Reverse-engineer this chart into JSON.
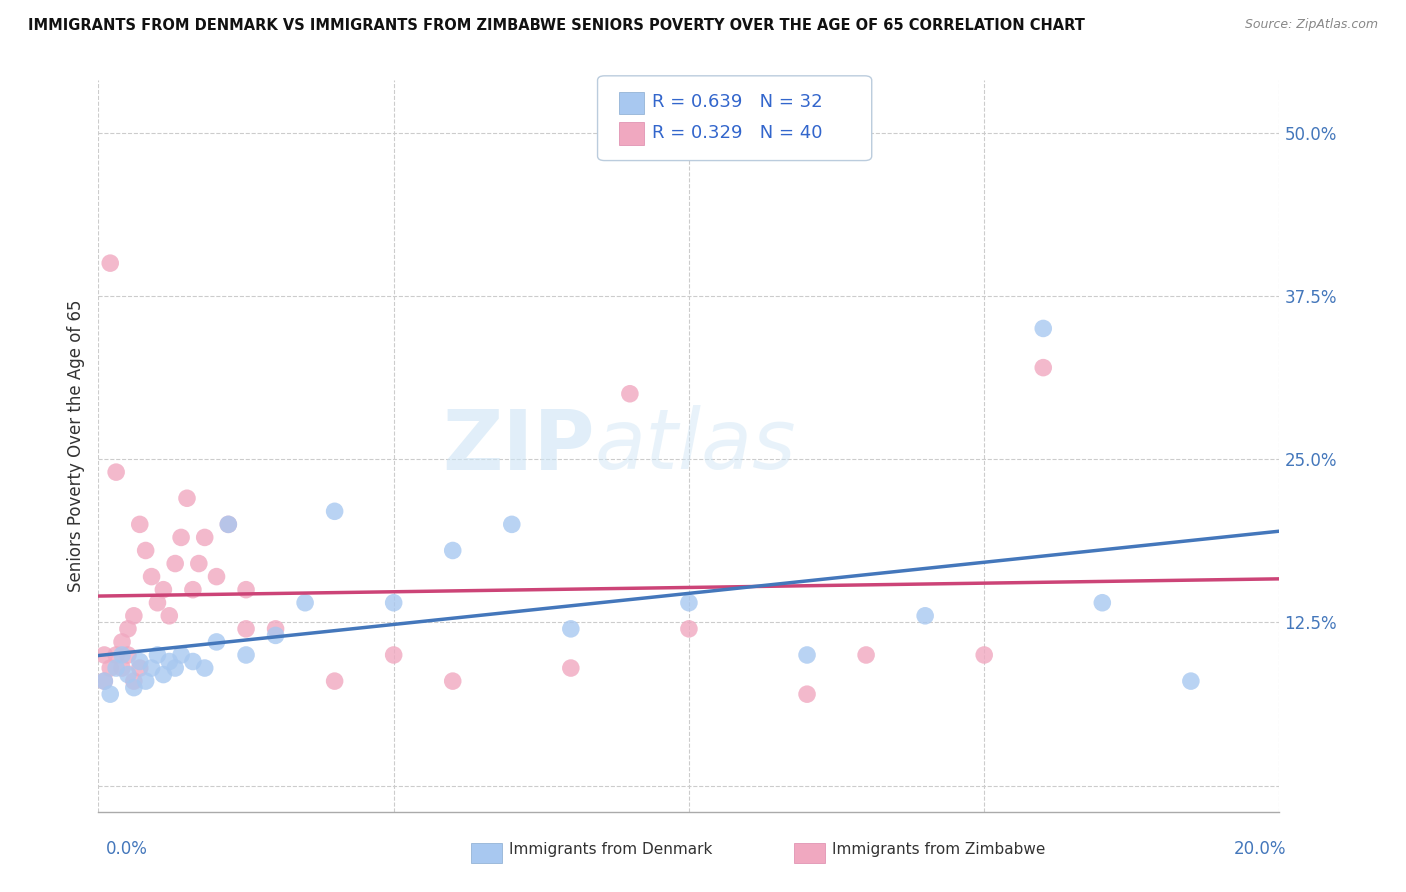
{
  "title": "IMMIGRANTS FROM DENMARK VS IMMIGRANTS FROM ZIMBABWE SENIORS POVERTY OVER THE AGE OF 65 CORRELATION CHART",
  "source": "Source: ZipAtlas.com",
  "ylabel": "Seniors Poverty Over the Age of 65",
  "ytick_values": [
    0.0,
    0.125,
    0.25,
    0.375,
    0.5
  ],
  "ytick_labels": [
    "",
    "12.5%",
    "25.0%",
    "37.5%",
    "50.0%"
  ],
  "xlim": [
    0.0,
    0.2
  ],
  "ylim": [
    -0.02,
    0.54
  ],
  "denmark_color": "#a8c8f0",
  "denmark_color_line": "#4477bb",
  "zimbabwe_color": "#f0a8c0",
  "zimbabwe_color_line": "#cc4477",
  "denmark_R": 0.639,
  "denmark_N": 32,
  "zimbabwe_R": 0.329,
  "zimbabwe_N": 40,
  "watermark_zip": "ZIP",
  "watermark_atlas": "atlas",
  "legend_denmark": "Immigrants from Denmark",
  "legend_zimbabwe": "Immigrants from Zimbabwe",
  "dk_x": [
    0.001,
    0.002,
    0.003,
    0.004,
    0.005,
    0.006,
    0.007,
    0.008,
    0.009,
    0.01,
    0.011,
    0.012,
    0.013,
    0.014,
    0.016,
    0.018,
    0.02,
    0.022,
    0.025,
    0.03,
    0.035,
    0.04,
    0.05,
    0.06,
    0.07,
    0.08,
    0.1,
    0.12,
    0.14,
    0.16,
    0.17,
    0.185
  ],
  "dk_y": [
    0.08,
    0.07,
    0.09,
    0.1,
    0.085,
    0.075,
    0.095,
    0.08,
    0.09,
    0.1,
    0.085,
    0.095,
    0.09,
    0.1,
    0.095,
    0.09,
    0.11,
    0.2,
    0.1,
    0.115,
    0.14,
    0.21,
    0.14,
    0.18,
    0.2,
    0.12,
    0.14,
    0.1,
    0.13,
    0.35,
    0.14,
    0.08
  ],
  "zim_x": [
    0.001,
    0.001,
    0.002,
    0.002,
    0.003,
    0.003,
    0.004,
    0.004,
    0.005,
    0.005,
    0.006,
    0.006,
    0.007,
    0.007,
    0.008,
    0.009,
    0.01,
    0.011,
    0.012,
    0.013,
    0.014,
    0.015,
    0.016,
    0.017,
    0.018,
    0.02,
    0.022,
    0.025,
    0.03,
    0.04,
    0.05,
    0.06,
    0.08,
    0.09,
    0.1,
    0.12,
    0.13,
    0.15,
    0.16,
    0.025
  ],
  "zim_y": [
    0.08,
    0.1,
    0.09,
    0.4,
    0.1,
    0.24,
    0.09,
    0.11,
    0.1,
    0.12,
    0.08,
    0.13,
    0.09,
    0.2,
    0.18,
    0.16,
    0.14,
    0.15,
    0.13,
    0.17,
    0.19,
    0.22,
    0.15,
    0.17,
    0.19,
    0.16,
    0.2,
    0.15,
    0.12,
    0.08,
    0.1,
    0.08,
    0.09,
    0.3,
    0.12,
    0.07,
    0.1,
    0.1,
    0.32,
    0.12
  ]
}
